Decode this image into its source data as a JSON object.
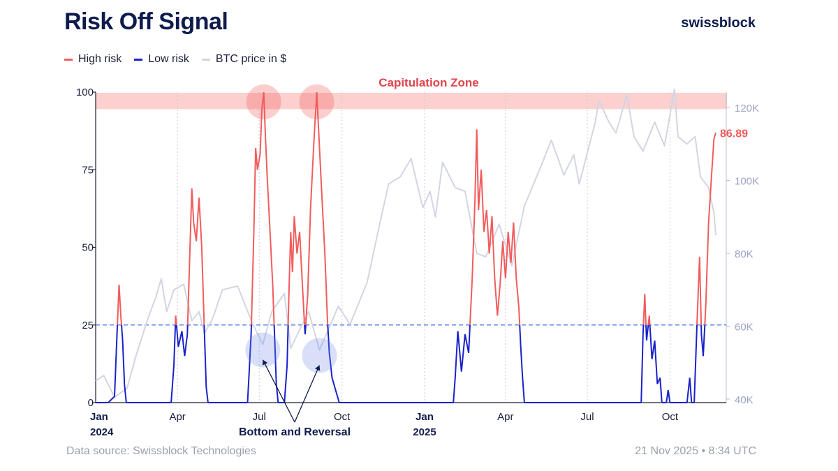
{
  "title": "Risk Off Signal",
  "brand": "swissblock",
  "legend": [
    {
      "label": "High risk",
      "color": "#f25c5c"
    },
    {
      "label": "Low risk",
      "color": "#1a22c9"
    },
    {
      "label": "BTC price in $",
      "color": "#d3d5e3"
    }
  ],
  "footer": {
    "source": "Data source: Swissblock Technologies",
    "timestamp": "21 Nov 2025 • 8:34 UTC"
  },
  "chart_data": {
    "type": "line",
    "left_axis": {
      "ticks": [
        "0",
        "25",
        "50",
        "75",
        "100"
      ],
      "range": [
        0,
        100
      ]
    },
    "right_axis": {
      "ticks": [
        "40K",
        "60K",
        "80K",
        "100K",
        "120K"
      ],
      "range": [
        40000,
        120000
      ]
    },
    "x_axis": {
      "range": [
        "2024-01-01",
        "2025-11-21"
      ],
      "labels": [
        {
          "date": "2024-01-01",
          "text": "Jan",
          "year": "2024"
        },
        {
          "date": "2024-04-01",
          "text": "Apr"
        },
        {
          "date": "2024-07-01",
          "text": "Jul"
        },
        {
          "date": "2024-10-01",
          "text": "Oct"
        },
        {
          "date": "2025-01-01",
          "text": "Jan",
          "year": "2025"
        },
        {
          "date": "2025-04-01",
          "text": "Apr"
        },
        {
          "date": "2025-07-01",
          "text": "Jul"
        },
        {
          "date": "2025-10-01",
          "text": "Oct"
        }
      ]
    },
    "threshold": 25,
    "annotations": {
      "capitulation_zone": {
        "label": "Capitulation Zone",
        "from": 97,
        "to": 100
      },
      "bottom_label": "Bottom and Reversal",
      "last_value_label": "86.89",
      "last_value": 86.89
    },
    "series": [
      {
        "name": "Risk Off Signal",
        "color_high": "#f25c5c",
        "color_low": "#1a22c9",
        "points": [
          [
            "2024-01-01",
            0
          ],
          [
            "2024-01-15",
            0
          ],
          [
            "2024-01-22",
            2
          ],
          [
            "2024-01-25",
            24
          ],
          [
            "2024-01-27",
            38
          ],
          [
            "2024-01-29",
            28
          ],
          [
            "2024-01-31",
            20
          ],
          [
            "2024-02-02",
            6
          ],
          [
            "2024-02-04",
            0
          ],
          [
            "2024-03-20",
            0
          ],
          [
            "2024-03-25",
            0
          ],
          [
            "2024-03-28",
            12
          ],
          [
            "2024-03-30",
            28
          ],
          [
            "2024-04-02",
            18
          ],
          [
            "2024-04-06",
            23
          ],
          [
            "2024-04-09",
            15
          ],
          [
            "2024-04-12",
            22
          ],
          [
            "2024-04-15",
            50
          ],
          [
            "2024-04-17",
            69
          ],
          [
            "2024-04-19",
            58
          ],
          [
            "2024-04-22",
            52
          ],
          [
            "2024-04-25",
            66
          ],
          [
            "2024-04-28",
            50
          ],
          [
            "2024-04-30",
            32
          ],
          [
            "2024-05-03",
            5
          ],
          [
            "2024-05-05",
            0
          ],
          [
            "2024-06-12",
            0
          ],
          [
            "2024-06-18",
            0
          ],
          [
            "2024-06-22",
            22
          ],
          [
            "2024-06-25",
            55
          ],
          [
            "2024-06-27",
            82
          ],
          [
            "2024-06-29",
            75
          ],
          [
            "2024-07-02",
            80
          ],
          [
            "2024-07-04",
            95
          ],
          [
            "2024-07-06",
            100
          ],
          [
            "2024-07-08",
            85
          ],
          [
            "2024-07-10",
            72
          ],
          [
            "2024-07-13",
            55
          ],
          [
            "2024-07-16",
            38
          ],
          [
            "2024-07-18",
            22
          ],
          [
            "2024-07-20",
            6
          ],
          [
            "2024-07-22",
            0
          ],
          [
            "2024-07-29",
            0
          ],
          [
            "2024-08-01",
            12
          ],
          [
            "2024-08-03",
            35
          ],
          [
            "2024-08-05",
            55
          ],
          [
            "2024-08-07",
            42
          ],
          [
            "2024-08-09",
            60
          ],
          [
            "2024-08-12",
            48
          ],
          [
            "2024-08-15",
            55
          ],
          [
            "2024-08-18",
            38
          ],
          [
            "2024-08-21",
            22
          ],
          [
            "2024-08-24",
            35
          ],
          [
            "2024-08-27",
            62
          ],
          [
            "2024-08-31",
            85
          ],
          [
            "2024-09-03",
            100
          ],
          [
            "2024-09-06",
            82
          ],
          [
            "2024-09-09",
            65
          ],
          [
            "2024-09-12",
            48
          ],
          [
            "2024-09-15",
            26
          ],
          [
            "2024-09-17",
            16
          ],
          [
            "2024-09-20",
            8
          ],
          [
            "2024-09-25",
            3
          ],
          [
            "2024-09-28",
            0
          ],
          [
            "2025-01-25",
            0
          ],
          [
            "2025-02-02",
            0
          ],
          [
            "2025-02-04",
            8
          ],
          [
            "2025-02-07",
            23
          ],
          [
            "2025-02-11",
            10
          ],
          [
            "2025-02-15",
            22
          ],
          [
            "2025-02-19",
            16
          ],
          [
            "2025-02-23",
            40
          ],
          [
            "2025-02-26",
            65
          ],
          [
            "2025-02-28",
            88
          ],
          [
            "2025-03-02",
            62
          ],
          [
            "2025-03-05",
            75
          ],
          [
            "2025-03-08",
            55
          ],
          [
            "2025-03-11",
            62
          ],
          [
            "2025-03-14",
            48
          ],
          [
            "2025-03-17",
            60
          ],
          [
            "2025-03-20",
            40
          ],
          [
            "2025-03-23",
            28
          ],
          [
            "2025-03-26",
            38
          ],
          [
            "2025-03-29",
            52
          ],
          [
            "2025-04-01",
            40
          ],
          [
            "2025-04-04",
            55
          ],
          [
            "2025-04-07",
            45
          ],
          [
            "2025-04-10",
            58
          ],
          [
            "2025-04-13",
            40
          ],
          [
            "2025-04-16",
            30
          ],
          [
            "2025-04-18",
            18
          ],
          [
            "2025-04-20",
            8
          ],
          [
            "2025-04-22",
            0
          ],
          [
            "2025-08-25",
            0
          ],
          [
            "2025-08-30",
            0
          ],
          [
            "2025-09-01",
            22
          ],
          [
            "2025-09-03",
            35
          ],
          [
            "2025-09-05",
            20
          ],
          [
            "2025-09-08",
            28
          ],
          [
            "2025-09-11",
            14
          ],
          [
            "2025-09-14",
            20
          ],
          [
            "2025-09-17",
            6
          ],
          [
            "2025-09-20",
            8
          ],
          [
            "2025-09-22",
            0
          ],
          [
            "2025-09-27",
            0
          ],
          [
            "2025-09-29",
            4
          ],
          [
            "2025-10-01",
            0
          ],
          [
            "2025-10-20",
            0
          ],
          [
            "2025-10-23",
            8
          ],
          [
            "2025-10-25",
            0
          ],
          [
            "2025-10-28",
            0
          ],
          [
            "2025-10-31",
            25
          ],
          [
            "2025-11-03",
            47
          ],
          [
            "2025-11-05",
            22
          ],
          [
            "2025-11-07",
            15
          ],
          [
            "2025-11-10",
            32
          ],
          [
            "2025-11-13",
            58
          ],
          [
            "2025-11-16",
            72
          ],
          [
            "2025-11-19",
            85
          ],
          [
            "2025-11-21",
            86.89
          ]
        ]
      },
      {
        "name": "BTC price in $",
        "color": "#d3d5e3",
        "points": [
          [
            "2024-01-01",
            45000
          ],
          [
            "2024-01-10",
            46500
          ],
          [
            "2024-01-22",
            40500
          ],
          [
            "2024-02-05",
            43000
          ],
          [
            "2024-02-15",
            52000
          ],
          [
            "2024-02-28",
            62000
          ],
          [
            "2024-03-08",
            68000
          ],
          [
            "2024-03-14",
            73000
          ],
          [
            "2024-03-20",
            64000
          ],
          [
            "2024-03-28",
            70000
          ],
          [
            "2024-04-08",
            71500
          ],
          [
            "2024-04-17",
            61500
          ],
          [
            "2024-04-25",
            64000
          ],
          [
            "2024-05-01",
            58000
          ],
          [
            "2024-05-10",
            62000
          ],
          [
            "2024-05-21",
            70000
          ],
          [
            "2024-06-07",
            71000
          ],
          [
            "2024-06-15",
            66000
          ],
          [
            "2024-06-24",
            60500
          ],
          [
            "2024-07-05",
            55000
          ],
          [
            "2024-07-15",
            64000
          ],
          [
            "2024-07-29",
            69000
          ],
          [
            "2024-08-05",
            54000
          ],
          [
            "2024-08-15",
            59000
          ],
          [
            "2024-08-25",
            64000
          ],
          [
            "2024-09-06",
            53500
          ],
          [
            "2024-09-15",
            58500
          ],
          [
            "2024-09-27",
            65500
          ],
          [
            "2024-10-10",
            60500
          ],
          [
            "2024-10-29",
            72000
          ],
          [
            "2024-11-12",
            88000
          ],
          [
            "2024-11-22",
            99000
          ],
          [
            "2024-12-05",
            101000
          ],
          [
            "2024-12-17",
            106000
          ],
          [
            "2024-12-30",
            92500
          ],
          [
            "2025-01-07",
            97000
          ],
          [
            "2025-01-13",
            90000
          ],
          [
            "2025-01-21",
            105000
          ],
          [
            "2025-02-04",
            98000
          ],
          [
            "2025-02-15",
            97000
          ],
          [
            "2025-02-28",
            80000
          ],
          [
            "2025-03-10",
            79000
          ],
          [
            "2025-03-25",
            88000
          ],
          [
            "2025-04-08",
            76500
          ],
          [
            "2025-04-22",
            93000
          ],
          [
            "2025-05-09",
            103000
          ],
          [
            "2025-05-22",
            111000
          ],
          [
            "2025-06-05",
            101500
          ],
          [
            "2025-06-16",
            107000
          ],
          [
            "2025-06-22",
            99000
          ],
          [
            "2025-07-10",
            116000
          ],
          [
            "2025-07-14",
            122000
          ],
          [
            "2025-07-25",
            116000
          ],
          [
            "2025-08-02",
            113000
          ],
          [
            "2025-08-14",
            123500
          ],
          [
            "2025-08-22",
            112000
          ],
          [
            "2025-09-01",
            108000
          ],
          [
            "2025-09-14",
            116000
          ],
          [
            "2025-09-25",
            109500
          ],
          [
            "2025-10-06",
            125000
          ],
          [
            "2025-10-10",
            112000
          ],
          [
            "2025-10-20",
            110000
          ],
          [
            "2025-10-29",
            112000
          ],
          [
            "2025-11-04",
            101000
          ],
          [
            "2025-11-13",
            98000
          ],
          [
            "2025-11-19",
            91000
          ],
          [
            "2025-11-21",
            85000
          ]
        ]
      }
    ]
  }
}
